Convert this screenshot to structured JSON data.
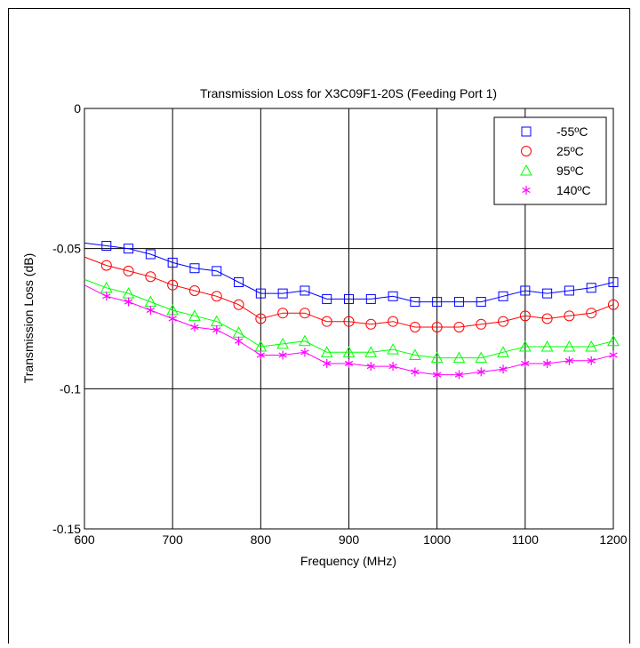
{
  "chart_data": {
    "type": "line",
    "title": "Transmission Loss for X3C09F1-20S (Feeding Port 1)",
    "xlabel": "Frequency (MHz)",
    "ylabel": "Transmission Loss (dB)",
    "xlim": [
      600,
      1200
    ],
    "ylim": [
      -0.15,
      0
    ],
    "xticks": [
      "600",
      "700",
      "800",
      "900",
      "1000",
      "1100",
      "1200"
    ],
    "yticks": [
      "0",
      "-0.05",
      "-0.1",
      "-0.15"
    ],
    "grid": true,
    "legend_position": "top-right",
    "x": [
      600,
      625,
      650,
      675,
      700,
      725,
      750,
      775,
      800,
      825,
      850,
      875,
      900,
      925,
      950,
      975,
      1000,
      1025,
      1050,
      1075,
      1100,
      1125,
      1150,
      1175,
      1200
    ],
    "series": [
      {
        "name": "-55ºC",
        "color": "#0000ff",
        "marker": "square",
        "values": [
          -0.048,
          -0.049,
          -0.05,
          -0.052,
          -0.055,
          -0.057,
          -0.058,
          -0.062,
          -0.066,
          -0.066,
          -0.065,
          -0.068,
          -0.068,
          -0.068,
          -0.067,
          -0.069,
          -0.069,
          -0.069,
          -0.069,
          -0.067,
          -0.065,
          -0.066,
          -0.065,
          -0.064,
          -0.062
        ]
      },
      {
        "name": "25ºC",
        "color": "#ff0000",
        "marker": "circle",
        "values": [
          -0.053,
          -0.056,
          -0.058,
          -0.06,
          -0.063,
          -0.065,
          -0.067,
          -0.07,
          -0.075,
          -0.073,
          -0.073,
          -0.076,
          -0.076,
          -0.077,
          -0.076,
          -0.078,
          -0.078,
          -0.078,
          -0.077,
          -0.076,
          -0.074,
          -0.075,
          -0.074,
          -0.073,
          -0.07
        ]
      },
      {
        "name": "95ºC",
        "color": "#00ff00",
        "marker": "triangle",
        "values": [
          -0.061,
          -0.064,
          -0.066,
          -0.069,
          -0.072,
          -0.074,
          -0.076,
          -0.08,
          -0.085,
          -0.084,
          -0.083,
          -0.087,
          -0.087,
          -0.087,
          -0.086,
          -0.088,
          -0.089,
          -0.089,
          -0.089,
          -0.087,
          -0.085,
          -0.085,
          -0.085,
          -0.085,
          -0.083
        ]
      },
      {
        "name": "140ºC",
        "color": "#ff00ff",
        "marker": "asterisk",
        "values": [
          -0.063,
          -0.067,
          -0.069,
          -0.072,
          -0.075,
          -0.078,
          -0.079,
          -0.083,
          -0.088,
          -0.088,
          -0.087,
          -0.091,
          -0.091,
          -0.092,
          -0.092,
          -0.094,
          -0.095,
          -0.095,
          -0.094,
          -0.093,
          -0.091,
          -0.091,
          -0.09,
          -0.09,
          -0.088
        ]
      }
    ]
  }
}
